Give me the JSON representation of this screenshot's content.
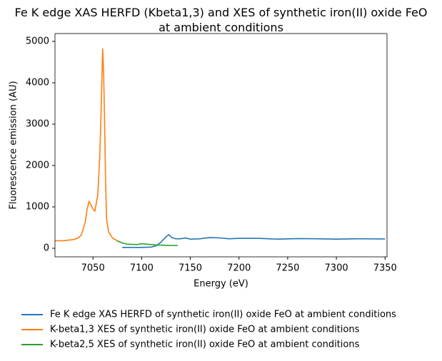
{
  "chart_data": {
    "type": "line",
    "title": "Fe K edge XAS HERFD (Kbeta1,3) and XES of synthetic iron(II) oxide FeO\nat ambient conditions",
    "xlabel": "Energy (eV)",
    "ylabel": "Fluorescence emission (AU)",
    "xlim": [
      7011,
      7352
    ],
    "ylim": [
      -207,
      5190
    ],
    "xticks": [
      7050,
      7100,
      7150,
      7200,
      7250,
      7300,
      7350
    ],
    "yticks": [
      0,
      1000,
      2000,
      3000,
      4000,
      5000
    ],
    "grid": false,
    "legend": "below",
    "series": [
      {
        "name": "Fe K edge XAS HERFD of synthetic iron(II) oxide FeO at ambient conditions",
        "color": "#1f77b4",
        "x": [
          7080,
          7090,
          7100,
          7110,
          7115,
          7120,
          7125,
          7128,
          7131,
          7135,
          7140,
          7145,
          7150,
          7160,
          7170,
          7180,
          7190,
          7200,
          7220,
          7240,
          7260,
          7280,
          7300,
          7320,
          7350
        ],
        "values": [
          20,
          20,
          20,
          30,
          60,
          150,
          280,
          330,
          260,
          230,
          230,
          250,
          220,
          230,
          260,
          250,
          230,
          240,
          240,
          220,
          235,
          230,
          220,
          230,
          225
        ]
      },
      {
        "name": "K-beta1,3 XES of synthetic iron(II) oxide FeO at ambient conditions",
        "color": "#ff7f0e",
        "x": [
          7011,
          7020,
          7030,
          7035,
          7038,
          7042,
          7044,
          7046,
          7048,
          7050,
          7052,
          7055,
          7057,
          7058,
          7060,
          7061,
          7062,
          7063,
          7064,
          7066,
          7070,
          7075,
          7078
        ],
        "values": [
          180,
          185,
          210,
          250,
          320,
          620,
          950,
          1130,
          1050,
          950,
          900,
          1300,
          2200,
          3000,
          4830,
          4200,
          3000,
          1600,
          700,
          400,
          250,
          180,
          150
        ]
      },
      {
        "name": "K-beta2,5 XES of synthetic iron(II) oxide FeO at ambient conditions",
        "color": "#2ca02c",
        "x": [
          7075,
          7080,
          7085,
          7095,
          7100,
          7105,
          7110,
          7115,
          7120,
          7130,
          7137
        ],
        "values": [
          180,
          130,
          100,
          90,
          110,
          100,
          90,
          80,
          75,
          68,
          65
        ]
      }
    ]
  }
}
